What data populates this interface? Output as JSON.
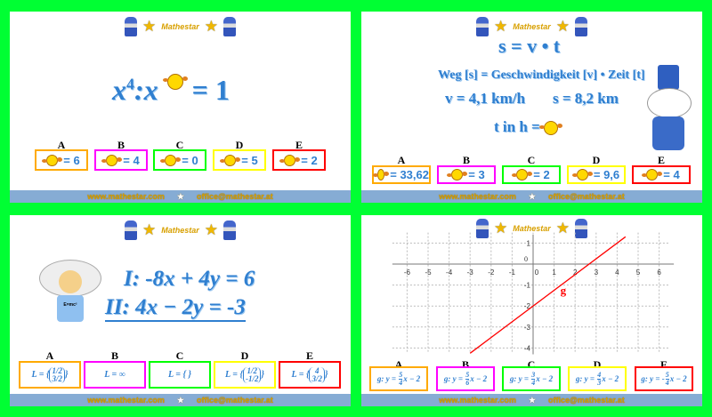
{
  "brand": {
    "name": "Mathestar",
    "website": "www.mathestar.com",
    "email": "office@mathestar.at"
  },
  "colors": {
    "background": "#00ff33",
    "A": "#ffaa00",
    "B": "#ff00ff",
    "C": "#00ff00",
    "D": "#ffff00",
    "E": "#ff0000",
    "math": "#2f7fd0",
    "line": "#ff0000"
  },
  "slide1": {
    "eq_left": "x",
    "exp": "4",
    "colon": ":",
    "eq_mid": "x",
    "eq_right": "= 1",
    "answers": [
      {
        "label": "A",
        "value": "= 6"
      },
      {
        "label": "B",
        "value": "= 4"
      },
      {
        "label": "C",
        "value": "= 0"
      },
      {
        "label": "D",
        "value": "= 5"
      },
      {
        "label": "E",
        "value": "= 2"
      }
    ]
  },
  "slide2": {
    "formula": "s = v • t",
    "explain": "Weg [s] = Geschwindigkeit [v] • Zeit [t]",
    "v": "v = 4,1 km/h",
    "s": "s = 8,2 km",
    "question": "t in h =",
    "answers": [
      {
        "label": "A",
        "value": "= 33,62"
      },
      {
        "label": "B",
        "value": "= 3"
      },
      {
        "label": "C",
        "value": "= 2"
      },
      {
        "label": "D",
        "value": "= 9,6"
      },
      {
        "label": "E",
        "value": "= 4"
      }
    ]
  },
  "slide3": {
    "eq1": "I: -8x + 4y = 6",
    "eq2": "II: 4x − 2y = -3",
    "shirt": "E=mc²",
    "answers": [
      {
        "label": "A",
        "prefix": "L =",
        "top": "1/2",
        "bottom": "3/2"
      },
      {
        "label": "B",
        "text": "L = ∞"
      },
      {
        "label": "C",
        "text": "L = { }"
      },
      {
        "label": "D",
        "prefix": "L =",
        "top": "1/2",
        "bottom": "-1/2"
      },
      {
        "label": "E",
        "prefix": "L =",
        "top": "4",
        "bottom": "3/2"
      }
    ]
  },
  "slide4": {
    "chart_data": {
      "type": "line",
      "xlim": [
        -6.5,
        6.5
      ],
      "ylim": [
        -4.2,
        1.3
      ],
      "x_ticks": [
        -6,
        -5,
        -4,
        -3,
        -2,
        -1,
        0,
        1,
        2,
        3,
        4,
        5,
        6
      ],
      "y_ticks": [
        1,
        0,
        -1,
        -2,
        -3,
        -4
      ],
      "grid": true,
      "series": [
        {
          "name": "g",
          "x": [
            -3,
            4.4
          ],
          "y": [
            -4.25,
            1.3
          ]
        }
      ]
    },
    "answers": [
      {
        "label": "A",
        "sign": "",
        "num": "5",
        "den": "4"
      },
      {
        "label": "B",
        "sign": "",
        "num": "5",
        "den": "6"
      },
      {
        "label": "C",
        "sign": "",
        "num": "3",
        "den": "4"
      },
      {
        "label": "D",
        "sign": "",
        "num": "4",
        "den": "3"
      },
      {
        "label": "E",
        "sign": "-",
        "num": "5",
        "den": "4"
      }
    ],
    "answer_prefix": "g: y =",
    "answer_suffix": "x − 2"
  }
}
